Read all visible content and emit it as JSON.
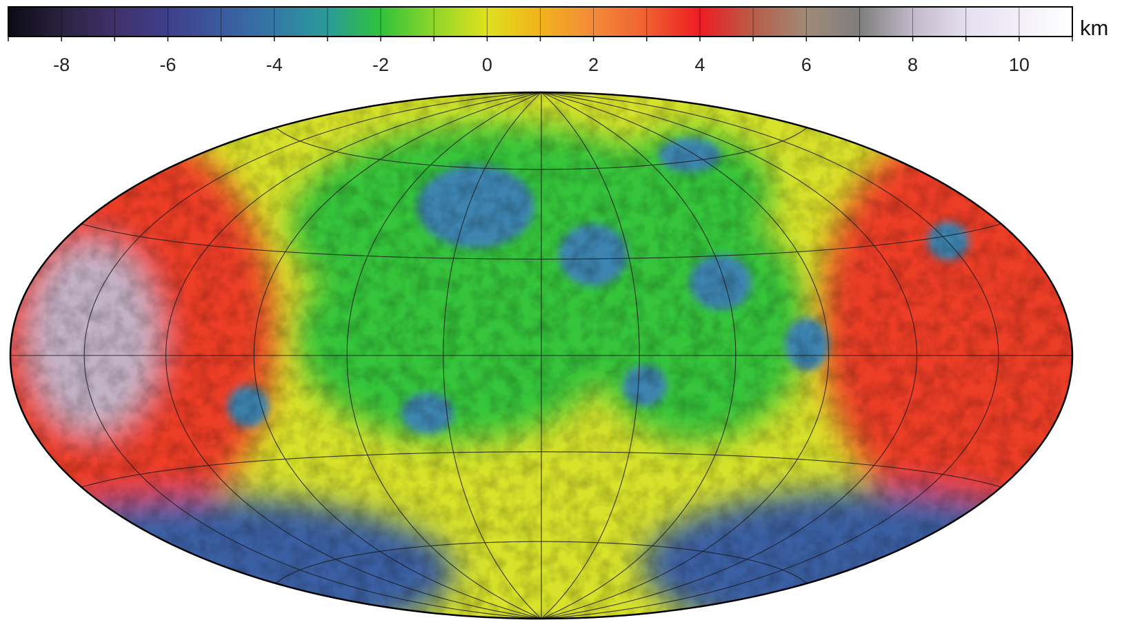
{
  "colorbar": {
    "unit": "km",
    "min": -9,
    "max": 11,
    "tick_values": [
      -8,
      -6,
      -4,
      -2,
      0,
      2,
      4,
      6,
      8,
      10
    ],
    "tick_labels": [
      "-8",
      "-6",
      "-4",
      "-2",
      "0",
      "2",
      "4",
      "6",
      "8",
      "10"
    ],
    "minor_step": 1,
    "color_stops": [
      {
        "value": -9,
        "color": "#0b0b14"
      },
      {
        "value": -8,
        "color": "#2b2240"
      },
      {
        "value": -7,
        "color": "#40306a"
      },
      {
        "value": -6,
        "color": "#3e3f8a"
      },
      {
        "value": -5,
        "color": "#3a5a9e"
      },
      {
        "value": -4,
        "color": "#3478a6"
      },
      {
        "value": -3,
        "color": "#2a9b9a"
      },
      {
        "value": -2,
        "color": "#2fc23a"
      },
      {
        "value": -1,
        "color": "#8fd62b"
      },
      {
        "value": 0,
        "color": "#e0e01e"
      },
      {
        "value": 1,
        "color": "#f2b21c"
      },
      {
        "value": 2,
        "color": "#f38a3a"
      },
      {
        "value": 3,
        "color": "#ef6030"
      },
      {
        "value": 4,
        "color": "#ee1c22"
      },
      {
        "value": 5,
        "color": "#b85d48"
      },
      {
        "value": 6,
        "color": "#a08a78"
      },
      {
        "value": 7,
        "color": "#7e7e7e"
      },
      {
        "value": 8,
        "color": "#c2b9c9"
      },
      {
        "value": 9,
        "color": "#e6dff0"
      },
      {
        "value": 11,
        "color": "#ffffff"
      }
    ]
  },
  "map": {
    "projection": "hammer",
    "graticule_step_deg": 30,
    "regions": [
      {
        "name": "lowland",
        "color": "#34c43a"
      },
      {
        "name": "basin",
        "color": "#3c84b0"
      },
      {
        "name": "plains",
        "color": "#d8e22a"
      },
      {
        "name": "highland",
        "color": "#ec3c26"
      },
      {
        "name": "summit",
        "color": "#c2b2c6"
      },
      {
        "name": "southern-depression",
        "color": "#3a5fa3"
      }
    ]
  }
}
